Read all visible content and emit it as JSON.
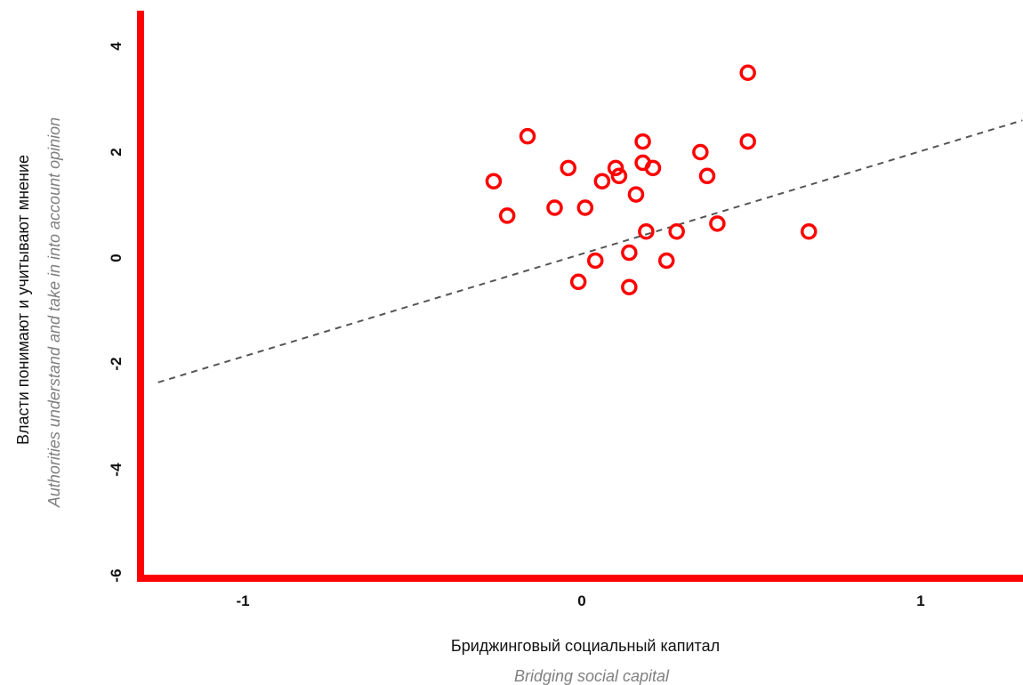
{
  "chart_data": {
    "type": "scatter",
    "title": "",
    "xlabel": "Бриджинговый социальный капитал",
    "xlabel_en": "Bridging social capital",
    "ylabel": "Власти понимают и учитывают мнение",
    "ylabel_en": "Authorities understand and take in into account opinion",
    "xlim": [
      -1.3,
      1.3
    ],
    "ylim": [
      -6.6,
      4.4
    ],
    "x_ticks": [
      -1,
      0,
      1
    ],
    "x_tick_labels": [
      "-1",
      "0",
      "1"
    ],
    "y_ticks": [
      -6,
      -4,
      -2,
      0,
      2,
      4
    ],
    "y_tick_labels": [
      "-6",
      "-4",
      "-2",
      "0",
      "2",
      "4"
    ],
    "grid": false,
    "legend": "none",
    "colors": {
      "points": "#ff0000",
      "axes": "#ff0000",
      "trend_line": "#555555"
    },
    "series": [
      {
        "x": [
          0.49,
          0.49,
          0.67,
          -0.16,
          0.18,
          0.35,
          0.18,
          0.1,
          0.21,
          -0.04,
          0.11,
          0.37,
          0.06,
          -0.26,
          0.16,
          -0.08,
          0.01,
          -0.22,
          0.4,
          0.19,
          0.28,
          0.14,
          0.04,
          0.25,
          -0.01,
          0.14
        ],
        "y": [
          3.5,
          2.2,
          0.5,
          2.3,
          2.2,
          2.0,
          1.8,
          1.7,
          1.7,
          1.7,
          1.55,
          1.55,
          1.45,
          1.45,
          1.2,
          0.95,
          0.95,
          0.8,
          0.65,
          0.5,
          0.5,
          0.1,
          -0.05,
          -0.05,
          -0.45,
          -0.55
        ]
      }
    ],
    "trend_line": {
      "style": "dashed",
      "x": [
        -1.25,
        1.3
      ],
      "y": [
        -2.35,
        2.6
      ]
    }
  }
}
